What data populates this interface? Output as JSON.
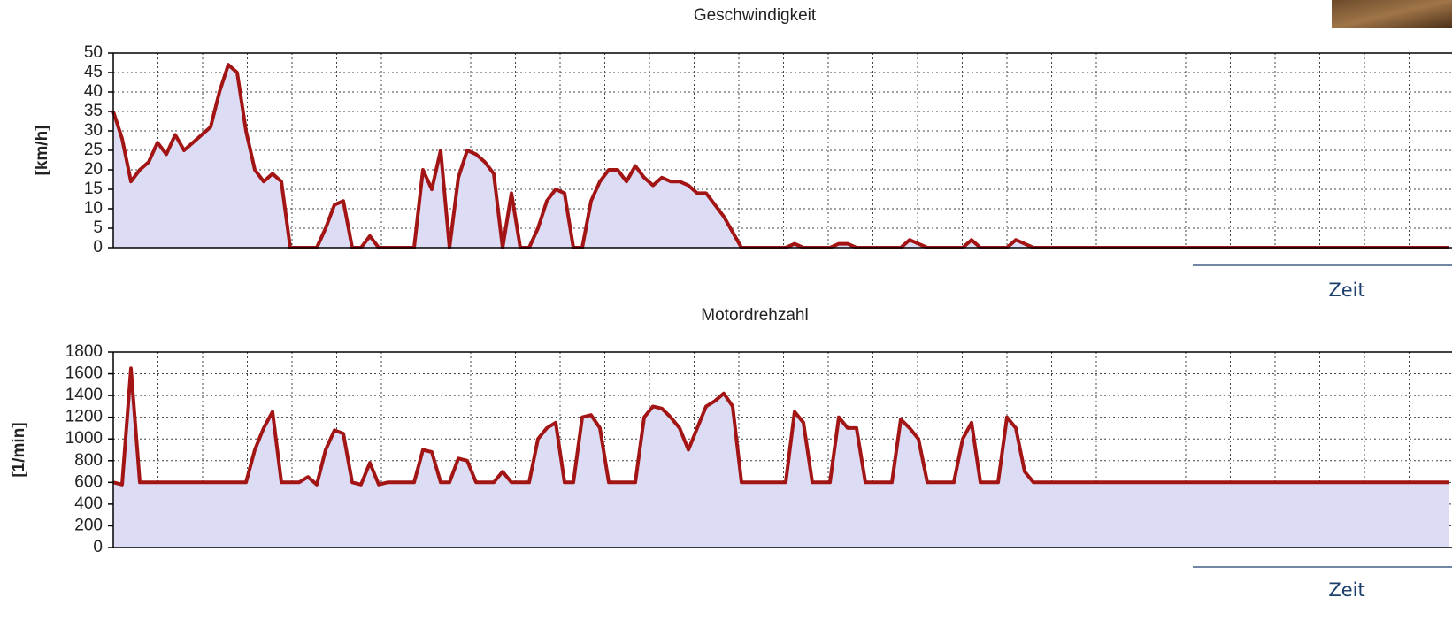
{
  "chart_data": [
    {
      "type": "area",
      "title": "Geschwindigkeit",
      "ylabel": "[km/h]",
      "xlabel": "Zeit",
      "color": "#a31515",
      "fill": "#dcdcf4",
      "ylim": [
        0,
        50
      ],
      "yticks": [
        0,
        5,
        10,
        15,
        20,
        25,
        30,
        35,
        40,
        45,
        50
      ],
      "grid": true,
      "values": [
        35,
        28,
        17,
        20,
        22,
        27,
        24,
        29,
        25,
        27,
        29,
        31,
        40,
        47,
        45,
        30,
        20,
        17,
        19,
        17,
        0,
        0,
        0,
        0,
        5,
        11,
        12,
        0,
        0,
        3,
        0,
        0,
        0,
        0,
        0,
        20,
        15,
        25,
        0,
        18,
        25,
        24,
        22,
        19,
        0,
        14,
        0,
        0,
        5,
        12,
        15,
        14,
        0,
        0,
        12,
        17,
        20,
        20,
        17,
        21,
        18,
        16,
        18,
        17,
        17,
        16,
        14,
        14,
        11,
        8,
        4,
        0,
        0,
        0,
        0,
        0,
        0,
        1,
        0,
        0,
        0,
        0,
        1,
        1,
        0,
        0,
        0,
        0,
        0,
        0,
        2,
        1,
        0,
        0,
        0,
        0,
        0,
        2,
        0,
        0,
        0,
        0,
        2,
        1,
        0,
        0,
        0,
        0,
        0,
        0,
        0,
        0,
        0,
        0,
        0,
        0,
        0,
        0,
        0,
        0,
        0,
        0,
        0,
        0,
        0,
        0,
        0,
        0,
        0,
        0,
        0,
        0,
        0,
        0,
        0,
        0,
        0,
        0,
        0,
        0,
        0,
        0,
        0,
        0,
        0,
        0,
        0,
        0,
        0,
        0,
        0,
        0
      ]
    },
    {
      "type": "area",
      "title": "Motordrehzahl",
      "ylabel": "[1/min]",
      "xlabel": "Zeit",
      "color": "#a31515",
      "fill": "#dcdcf4",
      "ylim": [
        0,
        1800
      ],
      "yticks": [
        0,
        200,
        400,
        600,
        800,
        1000,
        1200,
        1400,
        1600,
        1800
      ],
      "grid": true,
      "values": [
        600,
        580,
        1650,
        600,
        600,
        600,
        600,
        600,
        600,
        600,
        600,
        600,
        600,
        600,
        600,
        600,
        900,
        1100,
        1250,
        600,
        600,
        600,
        650,
        580,
        900,
        1080,
        1050,
        600,
        580,
        780,
        580,
        600,
        600,
        600,
        600,
        900,
        880,
        600,
        600,
        820,
        800,
        600,
        600,
        600,
        700,
        600,
        600,
        600,
        1000,
        1100,
        1150,
        600,
        600,
        1200,
        1220,
        1100,
        600,
        600,
        600,
        600,
        1200,
        1300,
        1280,
        1200,
        1100,
        900,
        1100,
        1300,
        1350,
        1420,
        1300,
        600,
        600,
        600,
        600,
        600,
        600,
        1250,
        1150,
        600,
        600,
        600,
        1200,
        1100,
        1100,
        600,
        600,
        600,
        600,
        1180,
        1100,
        1000,
        600,
        600,
        600,
        600,
        1000,
        1150,
        600,
        600,
        600,
        1200,
        1100,
        700,
        600,
        600,
        600,
        600,
        600,
        600,
        600,
        600,
        600,
        600,
        600,
        600,
        600,
        600,
        600,
        600,
        600,
        600,
        600,
        600,
        600,
        600,
        600,
        600,
        600,
        600,
        600,
        600,
        600,
        600,
        600,
        600,
        600,
        600,
        600,
        600,
        600,
        600,
        600,
        600,
        600,
        600,
        600,
        600,
        600,
        600,
        600,
        600
      ]
    }
  ]
}
